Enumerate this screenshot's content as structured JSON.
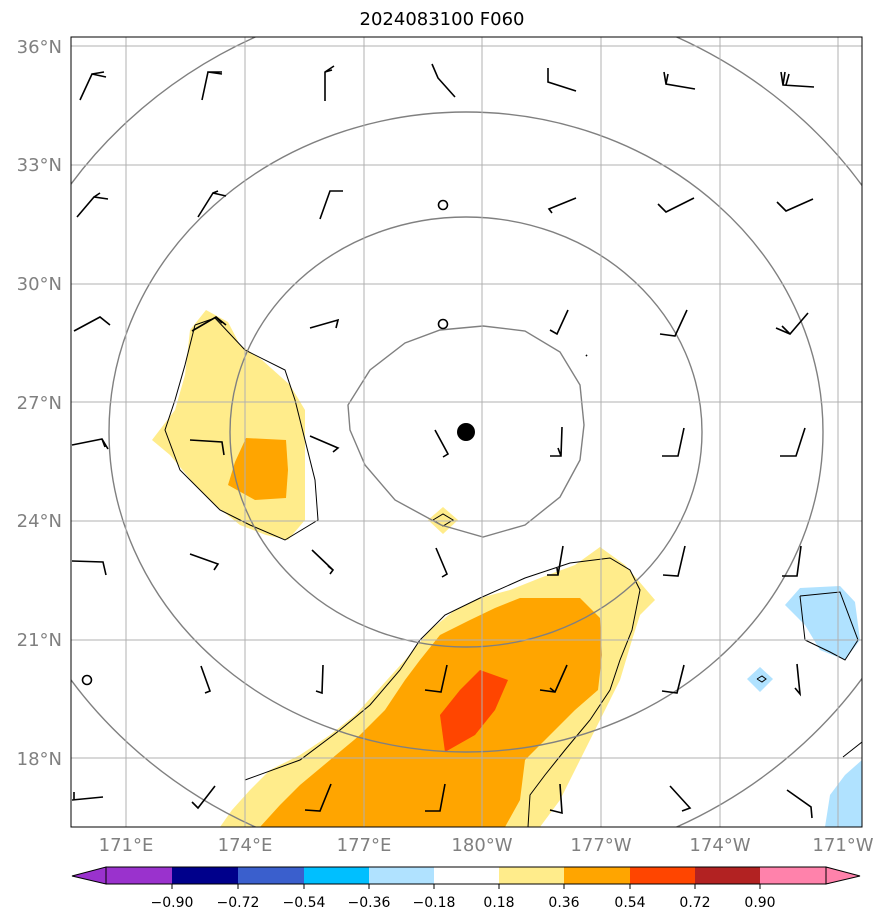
{
  "title": "2024083100 F060",
  "map": {
    "lat_range": [
      16.3,
      36.3
    ],
    "lon_range_east": [
      169.4,
      189.4
    ],
    "lat_labels": [
      "36°N",
      "33°N",
      "30°N",
      "27°N",
      "24°N",
      "21°N",
      "18°N"
    ],
    "lat_values": [
      36,
      33,
      30,
      27,
      24,
      21,
      18
    ],
    "lon_labels": [
      "171°E",
      "174°E",
      "177°E",
      "180°W",
      "177°W",
      "174°W",
      "171°W"
    ],
    "lon_values": [
      171,
      174,
      177,
      180,
      183,
      186,
      189
    ],
    "gridlines": true,
    "storm_center": {
      "lat": 26.3,
      "lon": 179.5
    },
    "range_rings_count": 4
  },
  "colorbar": {
    "levels": [
      "−0.90",
      "−0.72",
      "−0.54",
      "−0.36",
      "−0.18",
      "0.18",
      "0.36",
      "0.54",
      "0.72",
      "0.90"
    ],
    "colors": [
      "#9a32cd",
      "#00008b",
      "#3a5fcd",
      "#00bfff",
      "#b0e2ff",
      "#ffffff",
      "#ffec8b",
      "#ffa500",
      "#ff4500",
      "#b22222",
      "#ff82ab"
    ],
    "extend": "both"
  },
  "chart_data": {
    "type": "heatmap",
    "title": "2024083100 F060",
    "xlabel": "",
    "ylabel": "",
    "xlim": [
      169.4,
      189.4
    ],
    "ylim": [
      16.3,
      36.3
    ],
    "grid": true,
    "x_ticks": [
      "171°E",
      "174°E",
      "177°E",
      "180°W",
      "177°W",
      "174°W",
      "171°W"
    ],
    "y_ticks": [
      "36°N",
      "33°N",
      "30°N",
      "27°N",
      "24°N",
      "21°N",
      "18°N"
    ],
    "colorbar_levels": [
      -0.9,
      -0.72,
      -0.54,
      -0.36,
      -0.18,
      0.18,
      0.36,
      0.54,
      0.72,
      0.9
    ]
  }
}
